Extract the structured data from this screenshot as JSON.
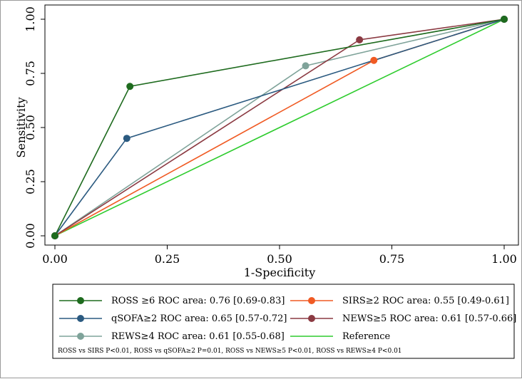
{
  "chart_data": {
    "type": "line",
    "xlabel": "1-Specificity",
    "ylabel": "Sensitivity",
    "xlim": [
      0,
      1
    ],
    "ylim": [
      0,
      1
    ],
    "xticks": [
      "0.00",
      "0.25",
      "0.50",
      "0.75",
      "1.00"
    ],
    "yticks": [
      "0.00",
      "0.25",
      "0.50",
      "0.75",
      "1.00"
    ],
    "grid": false,
    "legend_placement": "bottom",
    "series": [
      {
        "name": "ROSS ≥6 ROC area: 0.76 [0.69-0.83]",
        "color": "#1e6b1e",
        "markers": true,
        "x": [
          0,
          0.167,
          1
        ],
        "y": [
          0,
          0.69,
          1
        ]
      },
      {
        "name": "SIRS≥2 ROC area: 0.55 [0.49-0.61]",
        "color": "#f05a23",
        "markers": true,
        "x": [
          0,
          0.71,
          1
        ],
        "y": [
          0,
          0.81,
          1
        ]
      },
      {
        "name": "qSOFA≥2 ROC area: 0.65 [0.57-0.72]",
        "color": "#2b5a80",
        "markers": true,
        "x": [
          0,
          0.16,
          1
        ],
        "y": [
          0,
          0.45,
          1
        ]
      },
      {
        "name": "NEWS≥5 ROC area: 0.61 [0.57-0.66]",
        "color": "#8b3a42",
        "markers": true,
        "x": [
          0,
          0.678,
          1
        ],
        "y": [
          0,
          0.905,
          1
        ]
      },
      {
        "name": "REWS≥4 ROC area: 0.61 [0.55-0.68]",
        "color": "#7fa39a",
        "markers": true,
        "x": [
          0,
          0.558,
          1
        ],
        "y": [
          0,
          0.785,
          1
        ]
      },
      {
        "name": "Reference",
        "color": "#2ecc2e",
        "markers": false,
        "x": [
          0,
          1
        ],
        "y": [
          0,
          1
        ]
      }
    ],
    "legend_order": [
      0,
      1,
      2,
      3,
      4,
      5
    ],
    "note": "ROSS vs SIRS P<0.01, ROSS vs qSOFA≥2 P=0.01, ROSS vs NEWS≥5 P<0.01, ROSS vs REWS≥4 P<0.01"
  }
}
